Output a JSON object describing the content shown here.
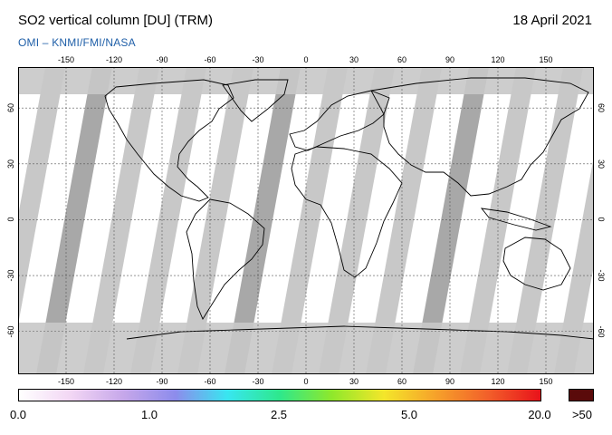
{
  "header": {
    "title": "SO2 vertical column [DU] (TRM)",
    "credit": "OMI  –  KNMI/FMI/NASA",
    "date": "18 April 2021"
  },
  "map": {
    "lon_ticks": [
      "-150",
      "-120",
      "-90",
      "-60",
      "-30",
      "0",
      "30",
      "60",
      "90",
      "120",
      "150"
    ],
    "lat_ticks": [
      "60",
      "30",
      "0",
      "-30",
      "-60"
    ],
    "land_color": "#ffffff",
    "no_data_color": "#c8c8c8",
    "swath_gap_color": "#a8a8a8",
    "coastline_color": "#000000",
    "grid_color": "#555555"
  },
  "colorbar": {
    "labels": [
      "0.0",
      "1.0",
      "2.5",
      "5.0",
      "20.0",
      ">50"
    ],
    "stops": [
      "#ffffff",
      "#f2d6f4",
      "#c6a7ea",
      "#8d8cec",
      "#38e6f0",
      "#2ee88c",
      "#8fe82b",
      "#f4e62a",
      "#f6a12a",
      "#f25f2a",
      "#e8121a"
    ],
    "over_color": "#5a0a0a"
  }
}
